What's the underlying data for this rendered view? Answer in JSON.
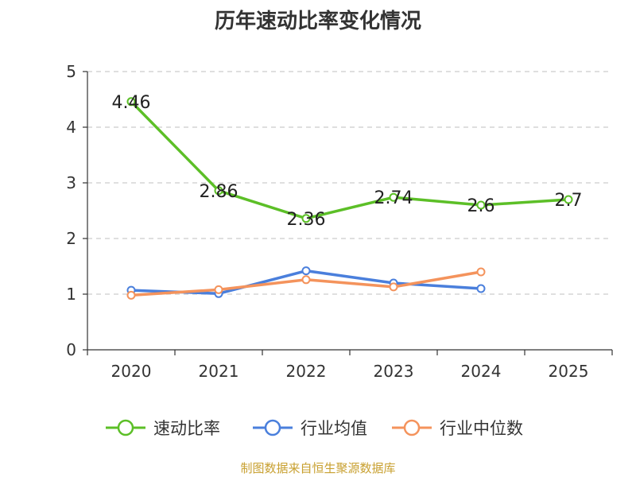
{
  "chart_data": {
    "type": "line",
    "title": "历年速动比率变化情况",
    "categories": [
      "2020",
      "2021",
      "2022",
      "2023",
      "2024",
      "2025"
    ],
    "ylim": [
      0,
      5
    ],
    "yticks": [
      "0",
      "1",
      "2",
      "3",
      "4",
      "5"
    ],
    "grid": "horizontal-dashed",
    "legend_position": "bottom",
    "series": [
      {
        "name": "速动比率",
        "color": "#5cbf27",
        "values": [
          4.46,
          2.86,
          2.36,
          2.74,
          2.6,
          2.7
        ],
        "labels": [
          "4.46",
          "2.86",
          "2.36",
          "2.74",
          "2.6",
          "2.7"
        ]
      },
      {
        "name": "行业均值",
        "color": "#4a7fdc",
        "values": [
          1.07,
          1.01,
          1.42,
          1.2,
          1.1,
          null
        ]
      },
      {
        "name": "行业中位数",
        "color": "#f4935c",
        "values": [
          0.98,
          1.08,
          1.26,
          1.13,
          1.4,
          null
        ]
      }
    ]
  },
  "footer": {
    "source": "制图数据来自恒生聚源数据库"
  }
}
